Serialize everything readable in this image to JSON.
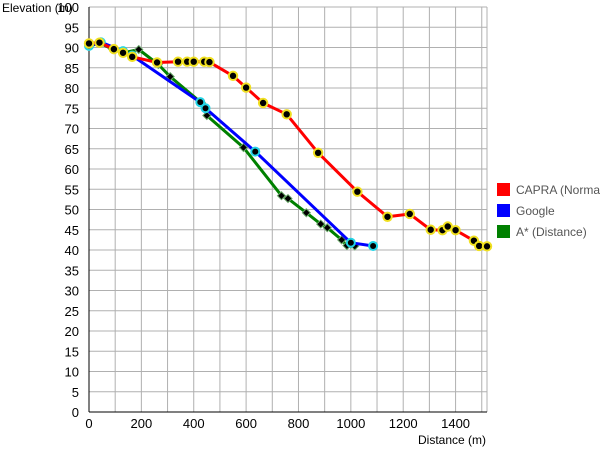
{
  "chart_data": {
    "type": "line",
    "title": "",
    "xlabel": "Distance (m)",
    "ylabel": "Elevation (m)",
    "xlim": [
      0,
      1520
    ],
    "ylim": [
      0,
      100
    ],
    "xticks": [
      0,
      200,
      400,
      600,
      800,
      1000,
      1200,
      1400
    ],
    "yticks": [
      0,
      5,
      10,
      15,
      20,
      25,
      30,
      35,
      40,
      45,
      50,
      55,
      60,
      65,
      70,
      75,
      80,
      85,
      90,
      95,
      100
    ],
    "grid": true,
    "legend_position": "right",
    "series": [
      {
        "name": "A* (Distance)",
        "color": "#008000",
        "marker": "diamond",
        "points": [
          [
            0,
            90.3
          ],
          [
            40,
            91.1
          ],
          [
            90,
            89.6
          ],
          [
            132,
            88.7
          ],
          [
            190,
            89.5
          ],
          [
            265,
            85.8
          ],
          [
            310,
            82.8
          ],
          [
            430,
            76.3
          ],
          [
            450,
            73.2
          ],
          [
            590,
            65.3
          ],
          [
            735,
            53.4
          ],
          [
            760,
            52.7
          ],
          [
            830,
            49.2
          ],
          [
            885,
            46.4
          ],
          [
            910,
            45.5
          ],
          [
            965,
            42.5
          ],
          [
            985,
            41.1
          ],
          [
            1000,
            41.4
          ],
          [
            1015,
            41.0
          ]
        ]
      },
      {
        "name": "Google",
        "color": "#0000ff",
        "marker": "circle-cyan",
        "points": [
          [
            0,
            90.4
          ],
          [
            45,
            91.3
          ],
          [
            130,
            89.1
          ],
          [
            165,
            88.0
          ],
          [
            425,
            76.5
          ],
          [
            445,
            75.0
          ],
          [
            635,
            64.3
          ],
          [
            1000,
            41.8
          ],
          [
            1085,
            41.0
          ]
        ]
      },
      {
        "name": "CAPRA (Normal)",
        "color": "#ff0000",
        "marker": "circle-yellow",
        "points": [
          [
            0,
            91.0
          ],
          [
            40,
            91.2
          ],
          [
            95,
            89.6
          ],
          [
            130,
            88.7
          ],
          [
            165,
            87.7
          ],
          [
            260,
            86.3
          ],
          [
            340,
            86.5
          ],
          [
            375,
            86.5
          ],
          [
            400,
            86.5
          ],
          [
            440,
            86.5
          ],
          [
            460,
            86.4
          ],
          [
            550,
            83.0
          ],
          [
            600,
            80.1
          ],
          [
            665,
            76.3
          ],
          [
            755,
            73.5
          ],
          [
            875,
            64.0
          ],
          [
            1025,
            54.4
          ],
          [
            1140,
            48.2
          ],
          [
            1225,
            48.9
          ],
          [
            1305,
            45.0
          ],
          [
            1350,
            44.9
          ],
          [
            1370,
            45.8
          ],
          [
            1400,
            44.9
          ],
          [
            1470,
            42.3
          ],
          [
            1490,
            41.0
          ],
          [
            1520,
            40.9
          ]
        ]
      }
    ],
    "legend": [
      "CAPRA (Normal)",
      "Google",
      "A* (Distance)"
    ]
  }
}
